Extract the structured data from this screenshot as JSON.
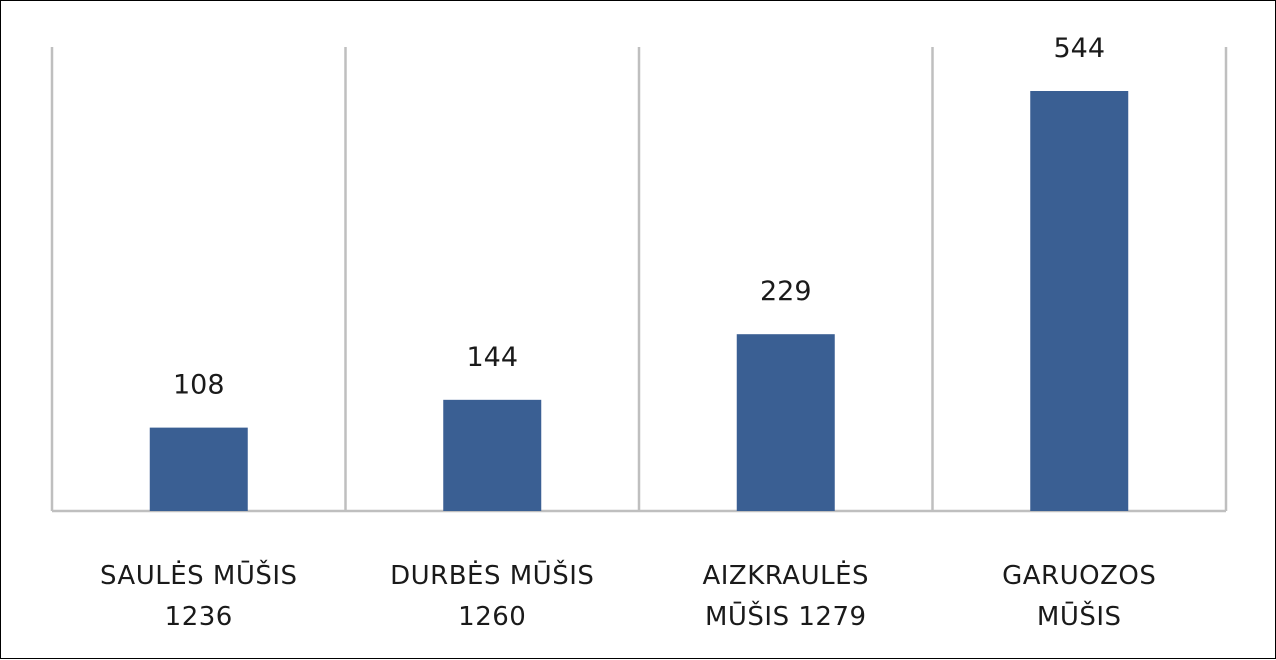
{
  "chart_data": {
    "type": "bar",
    "categories": [
      [
        "SAULĖS MŪŠIS",
        "1236"
      ],
      [
        "DURBĖS MŪŠIS",
        "1260"
      ],
      [
        "AIZKRAULĖS",
        "MŪŠIS 1279"
      ],
      [
        "GARUOZOS",
        "MŪŠIS"
      ]
    ],
    "values": [
      108,
      144,
      229,
      544
    ],
    "data_labels": [
      "108",
      "144",
      "229",
      "544"
    ],
    "ylim": [
      0,
      600
    ],
    "grid": "vertical category separators",
    "legend": "none",
    "colors": {
      "bar": "#3a5f93",
      "gridline": "#bfbfbf",
      "axis": "#bfbfbf",
      "text": "#1a1a1a"
    }
  }
}
